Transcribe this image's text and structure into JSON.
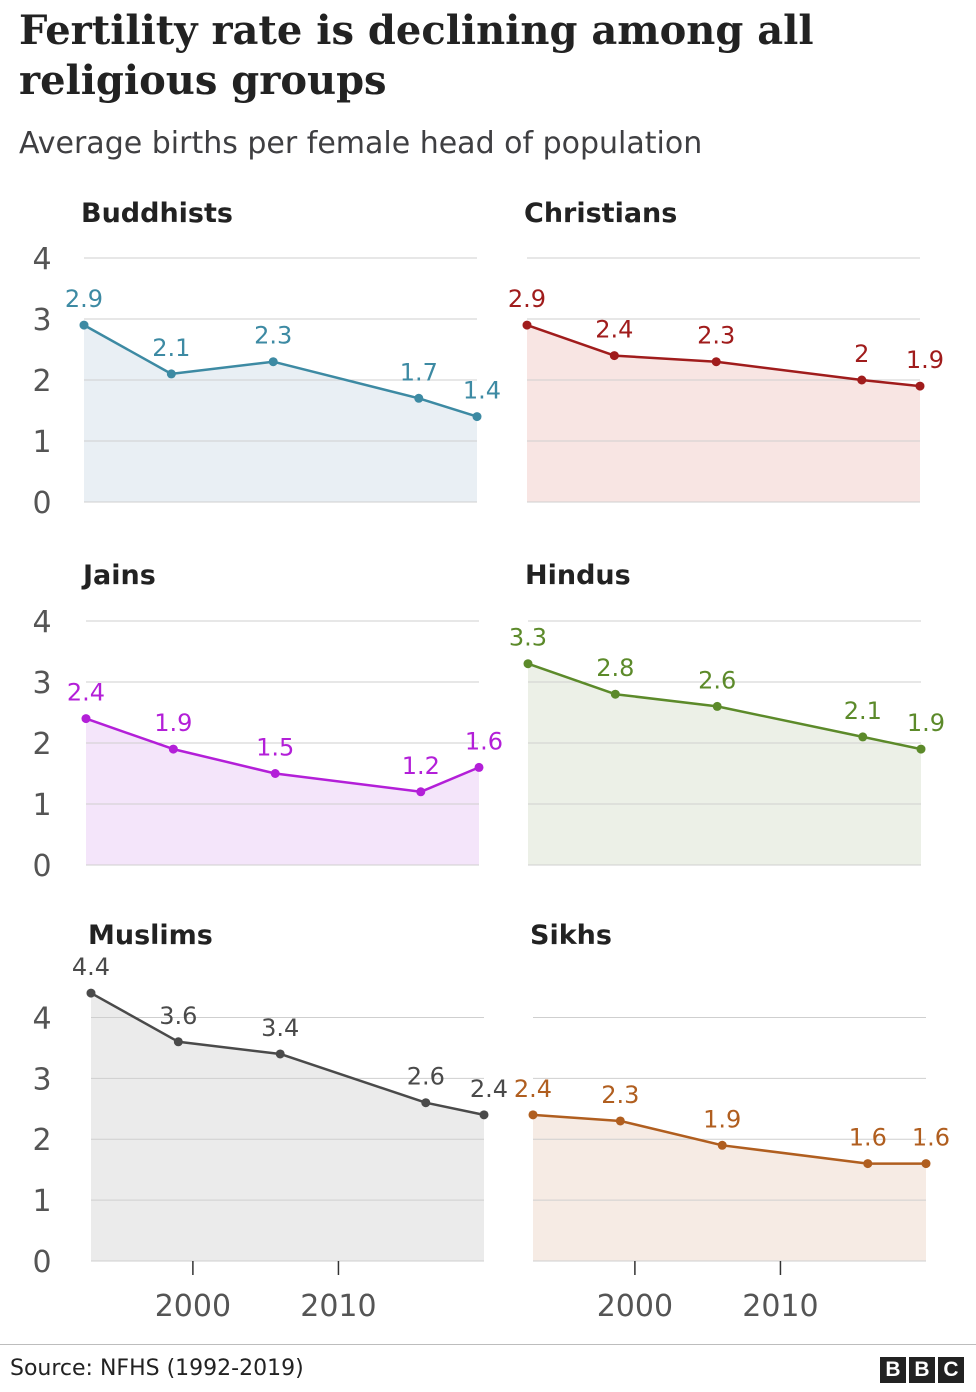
{
  "header": {
    "title": "Fertility rate is declining among all religious groups",
    "subtitle": "Average births per female head of population"
  },
  "footer": {
    "source": "Source: NFHS (1992-2019)",
    "logo_letters": [
      "B",
      "B",
      "C"
    ]
  },
  "chart_data": [
    {
      "type": "area",
      "title": "Buddhists",
      "color": "#3d8aa3",
      "fill": "#e9eff4",
      "x": [
        1993,
        1999,
        2006,
        2016,
        2020
      ],
      "y": [
        2.9,
        2.1,
        2.3,
        1.7,
        1.4
      ],
      "labels": [
        "2.9",
        "2.1",
        "2.3",
        "1.7",
        "1.4"
      ],
      "ylim": [
        0,
        4
      ],
      "yticks": [
        0,
        1,
        2,
        3,
        4
      ],
      "xticks": []
    },
    {
      "type": "area",
      "title": "Christians",
      "color": "#a01c1c",
      "fill": "#f8e5e3",
      "x": [
        1993,
        1999,
        2006,
        2016,
        2020
      ],
      "y": [
        2.9,
        2.4,
        2.3,
        2.0,
        1.9
      ],
      "labels": [
        "2.9",
        "2.4",
        "2.3",
        "2",
        "1.9"
      ],
      "ylim": [
        0,
        4
      ],
      "yticks": [],
      "xticks": []
    },
    {
      "type": "area",
      "title": "Jains",
      "color": "#b31fd8",
      "fill": "#f4e5fa",
      "x": [
        1993,
        1999,
        2006,
        2016,
        2020
      ],
      "y": [
        2.4,
        1.9,
        1.5,
        1.2,
        1.6
      ],
      "labels": [
        "2.4",
        "1.9",
        "1.5",
        "1.2",
        "1.6"
      ],
      "ylim": [
        0,
        4
      ],
      "yticks": [
        0,
        1,
        2,
        3,
        4
      ],
      "xticks": []
    },
    {
      "type": "area",
      "title": "Hindus",
      "color": "#5c8a2a",
      "fill": "#ecf0e7",
      "x": [
        1993,
        1999,
        2006,
        2016,
        2020
      ],
      "y": [
        3.3,
        2.8,
        2.6,
        2.1,
        1.9
      ],
      "labels": [
        "3.3",
        "2.8",
        "2.6",
        "2.1",
        "1.9"
      ],
      "ylim": [
        0,
        4
      ],
      "yticks": [],
      "xticks": []
    },
    {
      "type": "area",
      "title": "Muslims",
      "color": "#4a4a4a",
      "fill": "#ebebeb",
      "x": [
        1993,
        1999,
        2006,
        2016,
        2020
      ],
      "y": [
        4.4,
        3.6,
        3.4,
        2.6,
        2.4
      ],
      "labels": [
        "4.4",
        "3.6",
        "3.4",
        "2.6",
        "2.4"
      ],
      "ylim": [
        0,
        4.5
      ],
      "yticks": [
        0,
        1,
        2,
        3,
        4
      ],
      "xticks": [
        2000,
        2010
      ]
    },
    {
      "type": "area",
      "title": "Sikhs",
      "color": "#b05e1f",
      "fill": "#f6ebe4",
      "x": [
        1993,
        1999,
        2006,
        2016,
        2020
      ],
      "y": [
        2.4,
        2.3,
        1.9,
        1.6,
        1.6
      ],
      "labels": [
        "2.4",
        "2.3",
        "1.9",
        "1.6",
        "1.6"
      ],
      "ylim": [
        0,
        4.5
      ],
      "yticks": [],
      "xticks": [
        2000,
        2010
      ]
    }
  ]
}
